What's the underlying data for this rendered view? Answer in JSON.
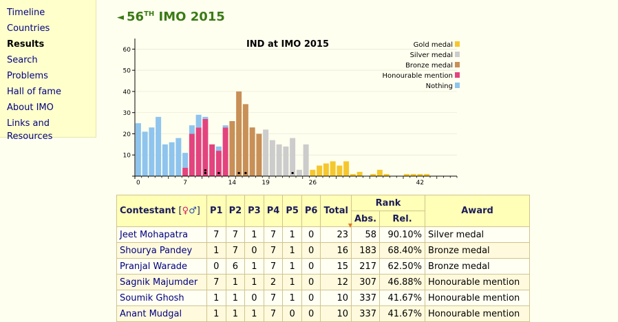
{
  "sidebar": {
    "items": [
      {
        "label": "Timeline",
        "active": false
      },
      {
        "label": "Countries",
        "active": false
      },
      {
        "label": "Results",
        "active": true
      },
      {
        "label": "Search",
        "active": false
      },
      {
        "label": "Problems",
        "active": false
      },
      {
        "label": "Hall of fame",
        "active": false
      },
      {
        "label": "About IMO",
        "active": false
      },
      {
        "label": "Links and Resources",
        "active": false
      }
    ]
  },
  "header": {
    "arrow": "◄",
    "number": "56",
    "suffix": "TH",
    "rest": "IMO 2015"
  },
  "chart_data": {
    "type": "bar",
    "title": "IND at IMO 2015",
    "x_ticks": [
      0,
      7,
      14,
      19,
      26,
      42
    ],
    "y_ticks": [
      10,
      20,
      30,
      40,
      50,
      60
    ],
    "ylim": [
      0,
      65
    ],
    "xlim": [
      0,
      48
    ],
    "legend": [
      {
        "label": "Gold medal",
        "color": "#f5c72e"
      },
      {
        "label": "Silver medal",
        "color": "#cccccc"
      },
      {
        "label": "Bronze medal",
        "color": "#c88f57"
      },
      {
        "label": "Honourable mention",
        "color": "#e3437e"
      },
      {
        "label": "Nothing",
        "color": "#8ec4ee"
      }
    ],
    "legend_position": "top-right",
    "values": [
      25,
      21,
      23,
      28,
      15,
      16,
      18,
      11,
      24,
      29,
      28,
      15,
      14,
      24,
      26,
      40,
      34,
      23,
      20,
      22,
      17,
      15,
      14,
      18,
      3,
      15,
      3,
      5,
      6,
      7,
      5,
      7,
      1,
      2,
      0,
      1,
      3,
      1,
      0,
      0,
      1,
      1,
      1,
      1,
      0,
      0,
      0
    ],
    "categories": [
      "nothing",
      "nothing",
      "nothing",
      "nothing",
      "nothing",
      "nothing",
      "nothing",
      "nothing",
      "nothing",
      "nothing",
      "nothing",
      "nothing",
      "nothing",
      "nothing",
      "bronze",
      "bronze",
      "bronze",
      "bronze",
      "bronze",
      "silver",
      "silver",
      "silver",
      "silver",
      "silver",
      "silver",
      "silver",
      "gold",
      "gold",
      "gold",
      "gold",
      "gold",
      "gold",
      "gold",
      "gold",
      "gold",
      "gold",
      "gold",
      "gold",
      "gold",
      "gold",
      "gold",
      "gold",
      "gold",
      "gold",
      "gold",
      "gold",
      "gold"
    ],
    "hm_values": [
      0,
      0,
      0,
      0,
      0,
      0,
      0,
      4,
      20,
      23,
      27,
      15,
      12,
      23,
      0,
      0,
      0,
      0,
      0,
      0,
      0,
      0,
      0,
      0,
      0,
      0,
      0,
      0,
      0,
      0,
      0,
      0,
      0,
      0,
      0,
      0,
      0,
      0,
      0,
      0,
      0,
      0,
      0,
      0,
      0,
      0,
      0
    ],
    "markers": [
      {
        "x": 10,
        "count": 2
      },
      {
        "x": 12,
        "count": 1
      },
      {
        "x": 15,
        "count": 1
      },
      {
        "x": 16,
        "count": 1
      },
      {
        "x": 23,
        "count": 1
      }
    ]
  },
  "table": {
    "headers": {
      "contestant": "Contestant",
      "bracket_open": "[",
      "female": "♀",
      "male": "♂",
      "bracket_close": "]",
      "p1": "P1",
      "p2": "P2",
      "p3": "P3",
      "p4": "P4",
      "p5": "P5",
      "p6": "P6",
      "total": "Total",
      "rank": "Rank",
      "abs": "Abs.",
      "rel": "Rel.",
      "award": "Award",
      "sort": "▼"
    },
    "rows": [
      {
        "name": "Jeet Mohapatra",
        "p": [
          "7",
          "7",
          "1",
          "7",
          "1",
          "0"
        ],
        "total": "23",
        "abs": "58",
        "rel": "90.10%",
        "award": "Silver medal"
      },
      {
        "name": "Shourya Pandey",
        "p": [
          "1",
          "7",
          "0",
          "7",
          "1",
          "0"
        ],
        "total": "16",
        "abs": "183",
        "rel": "68.40%",
        "award": "Bronze medal"
      },
      {
        "name": "Pranjal Warade",
        "p": [
          "0",
          "6",
          "1",
          "7",
          "1",
          "0"
        ],
        "total": "15",
        "abs": "217",
        "rel": "62.50%",
        "award": "Bronze medal"
      },
      {
        "name": "Sagnik Majumder",
        "p": [
          "7",
          "1",
          "1",
          "2",
          "1",
          "0"
        ],
        "total": "12",
        "abs": "307",
        "rel": "46.88%",
        "award": "Honourable mention"
      },
      {
        "name": "Soumik Ghosh",
        "p": [
          "1",
          "1",
          "0",
          "7",
          "1",
          "0"
        ],
        "total": "10",
        "abs": "337",
        "rel": "41.67%",
        "award": "Honourable mention"
      },
      {
        "name": "Anant Mudgal",
        "p": [
          "1",
          "1",
          "1",
          "7",
          "0",
          "0"
        ],
        "total": "10",
        "abs": "337",
        "rel": "41.67%",
        "award": "Honourable mention"
      }
    ]
  }
}
